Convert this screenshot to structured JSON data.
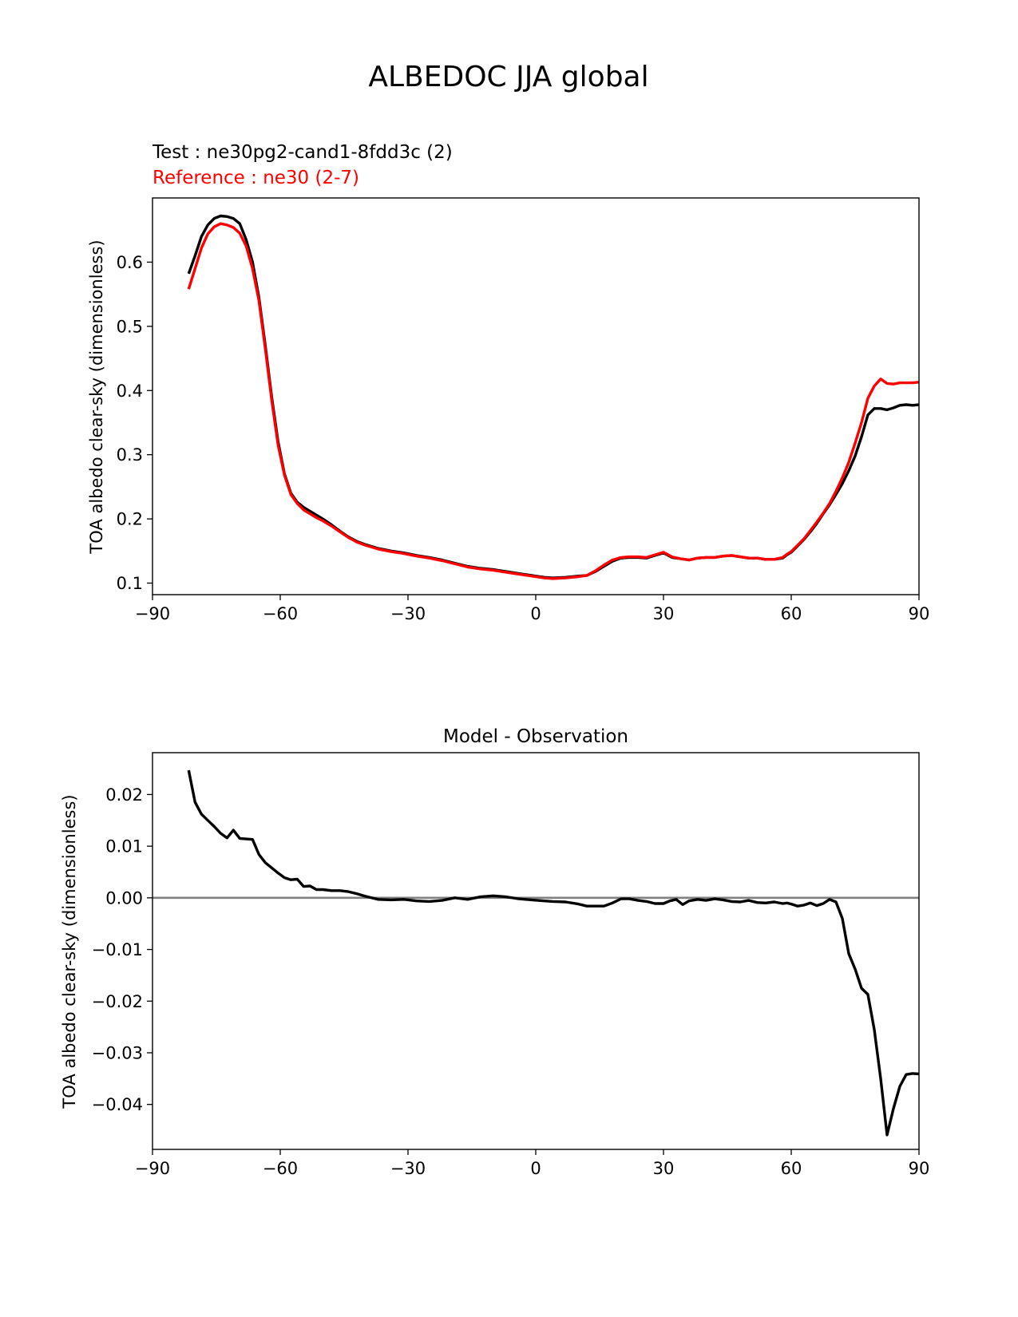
{
  "figure_title": "ALBEDOC JJA global",
  "chart_data": [
    {
      "type": "line",
      "legend_test": "Test : ne30pg2-cand1-8fdd3c (2)",
      "legend_reference": "Reference : ne30 (2-7)",
      "title": "",
      "xlabel": "",
      "ylabel": "TOA albedo clear-sky (dimensionless)",
      "xlim": [
        -90,
        90
      ],
      "ylim": [
        0.082,
        0.7
      ],
      "x_ticks": [
        -90,
        -60,
        -30,
        0,
        30,
        60,
        90
      ],
      "x_tick_labels": [
        "−90",
        "−60",
        "−30",
        "0",
        "30",
        "60",
        "90"
      ],
      "y_ticks": [
        0.1,
        0.2,
        0.3,
        0.4,
        0.5,
        0.6
      ],
      "y_tick_labels": [
        "0.1",
        "0.2",
        "0.3",
        "0.4",
        "0.5",
        "0.6"
      ],
      "series": [
        {
          "name": "Test : ne30pg2-cand1-8fdd3c (2)",
          "color": "#000000",
          "x": [
            -81.5,
            -80,
            -78.5,
            -77,
            -75.5,
            -74,
            -72.5,
            -71,
            -69.5,
            -68,
            -66.5,
            -65,
            -63.5,
            -62,
            -60.5,
            -59,
            -57.5,
            -56,
            -54.5,
            -53,
            -51.5,
            -50,
            -48,
            -46,
            -44,
            -42,
            -40,
            -37,
            -34,
            -31,
            -28,
            -25,
            -22,
            -19,
            -16,
            -13,
            -10,
            -7,
            -4,
            -1,
            2,
            4,
            7,
            10,
            12,
            14,
            16,
            18,
            20,
            22,
            24,
            26,
            28,
            30,
            32,
            34,
            36,
            38,
            40,
            42,
            44,
            46,
            48,
            50,
            52,
            54,
            56,
            58,
            59,
            60,
            61.5,
            63,
            64.5,
            66,
            67.5,
            69,
            70.5,
            72,
            73.5,
            75,
            76.5,
            78,
            79.5,
            81,
            82.5,
            84,
            85.5,
            87,
            88.5,
            90
          ],
          "values": [
            0.582,
            0.61,
            0.64,
            0.658,
            0.668,
            0.672,
            0.671,
            0.668,
            0.66,
            0.635,
            0.6,
            0.545,
            0.47,
            0.39,
            0.32,
            0.27,
            0.24,
            0.226,
            0.218,
            0.212,
            0.206,
            0.2,
            0.191,
            0.181,
            0.172,
            0.165,
            0.16,
            0.154,
            0.15,
            0.147,
            0.143,
            0.14,
            0.136,
            0.131,
            0.126,
            0.123,
            0.121,
            0.118,
            0.115,
            0.112,
            0.109,
            0.108,
            0.109,
            0.111,
            0.112,
            0.118,
            0.126,
            0.134,
            0.139,
            0.14,
            0.14,
            0.139,
            0.143,
            0.147,
            0.14,
            0.138,
            0.136,
            0.139,
            0.14,
            0.14,
            0.142,
            0.143,
            0.141,
            0.139,
            0.139,
            0.137,
            0.137,
            0.139,
            0.144,
            0.148,
            0.158,
            0.168,
            0.18,
            0.193,
            0.208,
            0.222,
            0.238,
            0.255,
            0.275,
            0.298,
            0.328,
            0.362,
            0.372,
            0.372,
            0.37,
            0.373,
            0.377,
            0.378,
            0.377,
            0.378
          ]
        },
        {
          "name": "Reference : ne30 (2-7)",
          "color": "#ff0000",
          "x": [
            -81.5,
            -80,
            -78.5,
            -77,
            -75.5,
            -74,
            -72.5,
            -71,
            -69.5,
            -68,
            -66.5,
            -65,
            -63.5,
            -62,
            -60.5,
            -59,
            -57.5,
            -56,
            -54.5,
            -53,
            -51.5,
            -50,
            -48,
            -46,
            -44,
            -42,
            -40,
            -37,
            -34,
            -31,
            -28,
            -25,
            -22,
            -19,
            -16,
            -13,
            -10,
            -7,
            -4,
            -1,
            2,
            4,
            7,
            10,
            12,
            14,
            16,
            18,
            20,
            22,
            24,
            26,
            28,
            30,
            32,
            34,
            36,
            38,
            40,
            42,
            44,
            46,
            48,
            50,
            52,
            54,
            56,
            58,
            59,
            60,
            61.5,
            63,
            64.5,
            66,
            67.5,
            69,
            70.5,
            72,
            73.5,
            75,
            76.5,
            78,
            79.5,
            81,
            82.5,
            84,
            85.5,
            87,
            88.5,
            90
          ],
          "values": [
            0.558,
            0.59,
            0.622,
            0.644,
            0.655,
            0.66,
            0.658,
            0.654,
            0.645,
            0.625,
            0.59,
            0.54,
            0.465,
            0.385,
            0.315,
            0.268,
            0.238,
            0.224,
            0.214,
            0.208,
            0.202,
            0.197,
            0.189,
            0.18,
            0.171,
            0.164,
            0.159,
            0.153,
            0.149,
            0.146,
            0.142,
            0.139,
            0.135,
            0.13,
            0.125,
            0.122,
            0.12,
            0.117,
            0.114,
            0.111,
            0.108,
            0.107,
            0.108,
            0.11,
            0.112,
            0.119,
            0.128,
            0.136,
            0.14,
            0.141,
            0.141,
            0.14,
            0.144,
            0.148,
            0.141,
            0.138,
            0.136,
            0.139,
            0.14,
            0.14,
            0.142,
            0.143,
            0.141,
            0.139,
            0.139,
            0.137,
            0.137,
            0.14,
            0.145,
            0.149,
            0.159,
            0.169,
            0.182,
            0.195,
            0.209,
            0.224,
            0.243,
            0.264,
            0.288,
            0.318,
            0.35,
            0.388,
            0.407,
            0.418,
            0.411,
            0.41,
            0.412,
            0.412,
            0.412,
            0.413
          ]
        }
      ]
    },
    {
      "type": "line",
      "title": "Model - Observation",
      "xlabel": "",
      "ylabel": "TOA albedo clear-sky (dimensionless)",
      "xlim": [
        -90,
        90
      ],
      "ylim": [
        -0.0487,
        0.0281
      ],
      "x_ticks": [
        -90,
        -60,
        -30,
        0,
        30,
        60,
        90
      ],
      "x_tick_labels": [
        "−90",
        "−60",
        "−30",
        "0",
        "30",
        "60",
        "90"
      ],
      "y_ticks": [
        0.02,
        0.01,
        0.0,
        -0.01,
        -0.02,
        -0.03,
        -0.04
      ],
      "y_tick_labels": [
        "0.02",
        "0.01",
        "0.00",
        "−0.01",
        "−0.02",
        "−0.03",
        "−0.04"
      ],
      "zero_line": {
        "y": 0.0,
        "color": "#808080"
      },
      "series": [
        {
          "name": "Model - Observation",
          "color": "#000000",
          "x": [
            -81.5,
            -80,
            -78.5,
            -77,
            -75.5,
            -74,
            -72.5,
            -71,
            -69.5,
            -68,
            -66.5,
            -65,
            -63.5,
            -62,
            -60.5,
            -59,
            -57.5,
            -56,
            -54.5,
            -53,
            -51.5,
            -50,
            -48,
            -46,
            -44,
            -42,
            -40,
            -37,
            -34,
            -31,
            -28,
            -25,
            -22,
            -19,
            -16,
            -13,
            -10,
            -7,
            -4,
            -1,
            2,
            4,
            7,
            10,
            12,
            14,
            16,
            18,
            20,
            22,
            24,
            26,
            28,
            30,
            31.5,
            33,
            34.5,
            36,
            38,
            40,
            42,
            44,
            46,
            48,
            50,
            52,
            54,
            56,
            58,
            59,
            60,
            61.5,
            63,
            64.5,
            66,
            67.5,
            69,
            70.5,
            72,
            73.5,
            75,
            76.5,
            78,
            79.5,
            81,
            82.5,
            84,
            85.5,
            87,
            88.5,
            90
          ],
          "values": [
            0.0247,
            0.0185,
            0.0162,
            0.015,
            0.0138,
            0.0125,
            0.0116,
            0.0131,
            0.0115,
            0.0114,
            0.0113,
            0.0084,
            0.0068,
            0.0058,
            0.0048,
            0.0039,
            0.0035,
            0.0036,
            0.0022,
            0.0023,
            0.0016,
            0.0016,
            0.0014,
            0.0014,
            0.0012,
            0.0008,
            0.0003,
            -0.0003,
            -0.0004,
            -0.0003,
            -0.0006,
            -0.0007,
            -0.0005,
            0.0,
            -0.0003,
            0.0002,
            0.0004,
            0.0002,
            -0.0002,
            -0.0004,
            -0.0006,
            -0.0007,
            -0.0008,
            -0.0012,
            -0.0016,
            -0.0016,
            -0.0016,
            -0.001,
            -0.0002,
            -0.0002,
            -0.0005,
            -0.0007,
            -0.0011,
            -0.0011,
            -0.0006,
            -0.0003,
            -0.0013,
            -0.0006,
            -0.0003,
            -0.0005,
            -0.0002,
            -0.0004,
            -0.0007,
            -0.0008,
            -0.0005,
            -0.0009,
            -0.001,
            -0.0008,
            -0.0011,
            -0.001,
            -0.0012,
            -0.0016,
            -0.0014,
            -0.001,
            -0.0015,
            -0.0011,
            -0.0003,
            -0.0008,
            -0.004,
            -0.0108,
            -0.0138,
            -0.0175,
            -0.0187,
            -0.0255,
            -0.035,
            -0.0459,
            -0.0408,
            -0.0365,
            -0.0342,
            -0.034,
            -0.0341
          ]
        }
      ]
    }
  ]
}
